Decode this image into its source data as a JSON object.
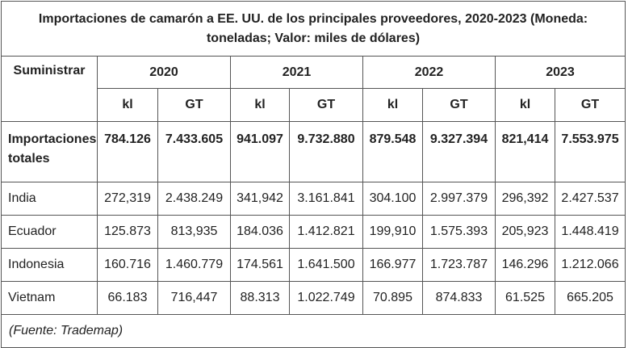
{
  "table": {
    "title": "Importaciones de camarón a EE. UU. de los principales proveedores, 2020-2023 (Moneda: toneladas; Valor: miles de dólares)",
    "supplier_header": "Suministrar",
    "years": [
      "2020",
      "2021",
      "2022",
      "2023"
    ],
    "units": [
      "kl",
      "GT",
      "kl",
      "GT",
      "kl",
      "GT",
      "kl",
      "GT"
    ],
    "total_row": {
      "name": "Importaciones totales",
      "values": [
        "784.126",
        "7.433.605",
        "941.097",
        "9.732.880",
        "879.548",
        "9.327.394",
        "821,414",
        "7.553.975"
      ]
    },
    "rows": [
      {
        "name": "India",
        "values": [
          "272,319",
          "2.438.249",
          "341,942",
          "3.161.841",
          "304.100",
          "2.997.379",
          "296,392",
          "2.427.537"
        ]
      },
      {
        "name": "Ecuador",
        "values": [
          "125.873",
          "813,935",
          "184.036",
          "1.412.821",
          "199,910",
          "1.575.393",
          "205,923",
          "1.448.419"
        ]
      },
      {
        "name": "Indonesia",
        "values": [
          "160.716",
          "1.460.779",
          "174.561",
          "1.641.500",
          "166.977",
          "1.723.787",
          "146.296",
          "1.212.066"
        ]
      },
      {
        "name": "Vietnam",
        "values": [
          "66.183",
          "716,447",
          "88.313",
          "1.022.749",
          "70.895",
          "874.833",
          "61.525",
          "665.205"
        ]
      }
    ],
    "source": "(Fuente: Trademap)"
  }
}
